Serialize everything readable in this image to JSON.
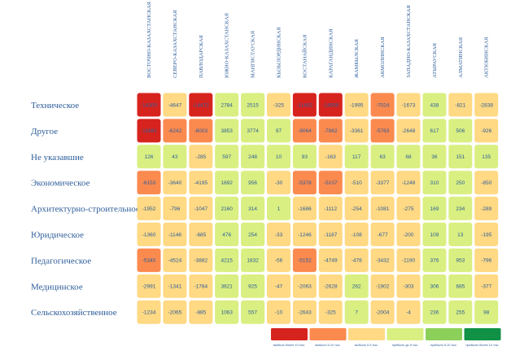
{
  "chart_data": {
    "type": "heatmap",
    "columns": [
      "ВОСТОЧНО-КАЗАХСТАНСКАЯ",
      "СЕВЕРО-КАЗАХСТАНСКАЯ",
      "ПАВЛОДАРСКАЯ",
      "ЮЖНО-КАЗАХСТАНСКАЯ",
      "МАНГИСТАУСКАЯ",
      "КЫЗЫЛОРДИНСКАЯ",
      "КОСТАНАЙСКАЯ",
      "КАРАГАНДИНСКАЯ",
      "ЖАМБЫЛСКАЯ",
      "АКМОЛИНСКАЯ",
      "ЗАПАДНО-КАЗАХСТАНСКАЯ",
      "АТЫРАУСКАЯ",
      "АЛМАТИНСКАЯ",
      "АКТЮБИНСКАЯ"
    ],
    "rows": [
      "Техническое",
      "Другое",
      "Не указавшие",
      "Экономическое",
      "Архитектурно-строительное",
      "Юридическое",
      "Педагогическое",
      "Медицинское",
      "Сельскохозяйственное"
    ],
    "values": [
      [
        -14300,
        -4647,
        -14472,
        2784,
        2515,
        -325,
        -11462,
        -14556,
        -1995,
        -7024,
        -1673,
        438,
        -821,
        -2838
      ],
      [
        -11881,
        -6242,
        -8003,
        3853,
        3774,
        97,
        -9064,
        -7862,
        -3361,
        -5763,
        -2648,
        617,
        506,
        -926
      ],
      [
        126,
        43,
        -285,
        597,
        248,
        10,
        93,
        -163,
        117,
        63,
        68,
        36,
        151,
        135
      ],
      [
        -6153,
        -3640,
        -4195,
        1692,
        956,
        -30,
        -5378,
        -5107,
        -510,
        -3377,
        -1248,
        310,
        250,
        -850
      ],
      [
        -1952,
        -796,
        -1047,
        2160,
        314,
        1,
        -1686,
        -1112,
        -254,
        -1081,
        -275,
        169,
        234,
        -289
      ],
      [
        -1360,
        -1146,
        -685,
        476,
        254,
        -33,
        -1246,
        -1187,
        -108,
        -677,
        -200,
        109,
        13,
        -195
      ],
      [
        -5340,
        -4524,
        -3882,
        4215,
        1832,
        -56,
        -5152,
        -4749,
        -478,
        -3432,
        -1190,
        376,
        953,
        -796
      ],
      [
        -2991,
        -1341,
        -1784,
        3621,
        925,
        -47,
        -2063,
        -2628,
        262,
        -1902,
        -303,
        306,
        685,
        -377
      ],
      [
        -1234,
        -2065,
        -885,
        1063,
        557,
        -10,
        -2643,
        -325,
        7,
        -2004,
        -4,
        236,
        255,
        98
      ]
    ],
    "legend": [
      {
        "label": "выбыло более 10 тыс.",
        "color": "#d7231e"
      },
      {
        "label": "выбыло 5-10 тыс.",
        "color": "#fb8a4f"
      },
      {
        "label": "выбыло 0-5 тыс.",
        "color": "#ffd983"
      },
      {
        "label": "прибыло до 5 тыс.",
        "color": "#d9ef81"
      },
      {
        "label": "прибыло 5-10 тыс.",
        "color": "#8cd05a"
      },
      {
        "label": "прибыло более 10 тыс.",
        "color": "#109146"
      }
    ]
  }
}
